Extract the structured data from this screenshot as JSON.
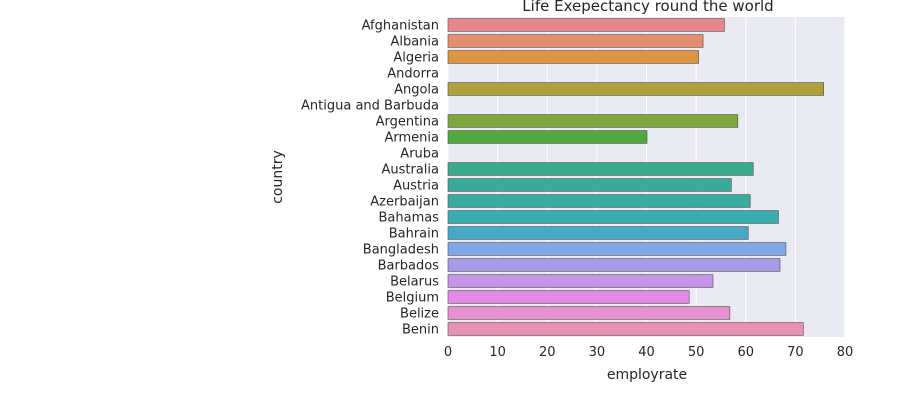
{
  "chart_data": {
    "type": "bar",
    "orientation": "horizontal",
    "title": "Life Exepectancy round the world",
    "xlabel": "employrate",
    "ylabel": "country",
    "xlim": [
      0,
      80
    ],
    "xticks": [
      0,
      10,
      20,
      30,
      40,
      50,
      60,
      70,
      80
    ],
    "grid": true,
    "categories": [
      "Afghanistan",
      "Albania",
      "Algeria",
      "Andorra",
      "Angola",
      "Antigua and Barbuda",
      "Argentina",
      "Armenia",
      "Aruba",
      "Australia",
      "Austria",
      "Azerbaijan",
      "Bahamas",
      "Bahrain",
      "Bangladesh",
      "Barbados",
      "Belarus",
      "Belgium",
      "Belize",
      "Benin"
    ],
    "values": [
      55.7,
      51.4,
      50.5,
      null,
      75.7,
      null,
      58.4,
      40.1,
      null,
      61.5,
      57.1,
      60.9,
      66.6,
      60.5,
      68.1,
      66.9,
      53.4,
      48.6,
      56.8,
      71.6
    ],
    "colors": [
      "#e8868e",
      "#e38f6e",
      "#dd9443",
      "#c8a03a",
      "#aea03c",
      "#94a53c",
      "#7ea73e",
      "#50a83e",
      "#3aa859",
      "#3aa98c",
      "#3aaa9c",
      "#3aac9f",
      "#3aadb0",
      "#47a8c8",
      "#80a8e8",
      "#a89ce8",
      "#c596e8",
      "#e38ae8",
      "#e891d2",
      "#e891b2"
    ]
  }
}
